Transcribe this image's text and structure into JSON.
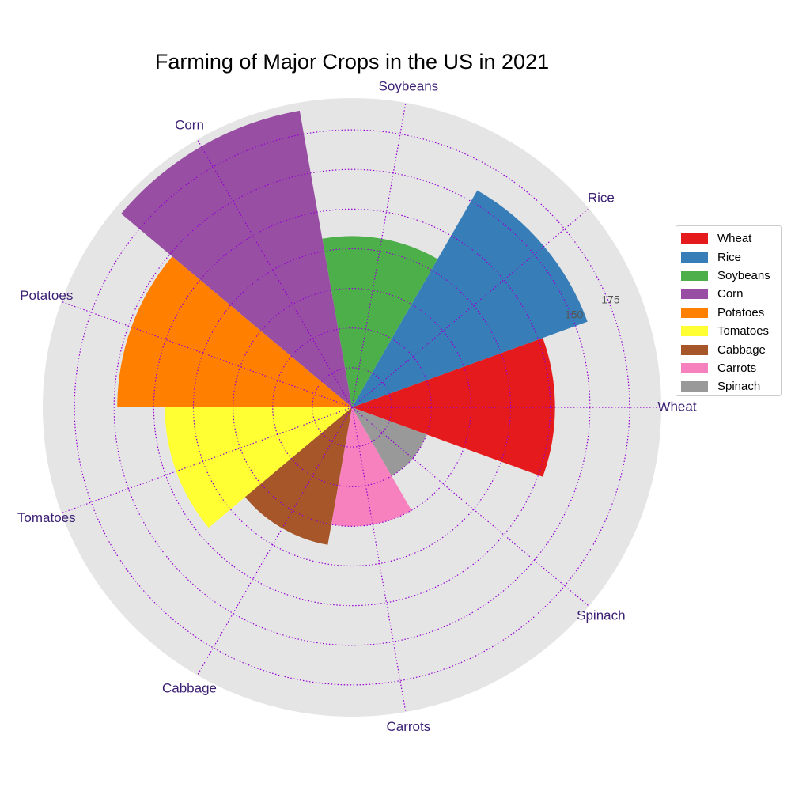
{
  "chart_data": {
    "type": "polar-bar",
    "title": "Farming of Major Crops in the US in 2021",
    "categories": [
      "Wheat",
      "Rice",
      "Soybeans",
      "Corn",
      "Potatoes",
      "Tomatoes",
      "Cabbage",
      "Carrots",
      "Spinach"
    ],
    "values": [
      128,
      158,
      108,
      190,
      148,
      118,
      88,
      75,
      50
    ],
    "colors": [
      "#e41a1c",
      "#377eb8",
      "#4daf4a",
      "#984ea3",
      "#ff7f00",
      "#ffff33",
      "#a65628",
      "#f781bf",
      "#999999"
    ],
    "rmax": 195,
    "radial_ticks": [
      25,
      50,
      75,
      100,
      125,
      150,
      175
    ],
    "radial_tick_labels_shown": [
      "150",
      "175"
    ],
    "grid": true,
    "grid_color": "#9400d3",
    "grid_style": "dotted",
    "background_color": "#e5e5e5",
    "category_label_color": "#3b1f73",
    "legend_position": "right",
    "legend": [
      "Wheat",
      "Rice",
      "Soybeans",
      "Corn",
      "Potatoes",
      "Tomatoes",
      "Cabbage",
      "Carrots",
      "Spinach"
    ]
  }
}
